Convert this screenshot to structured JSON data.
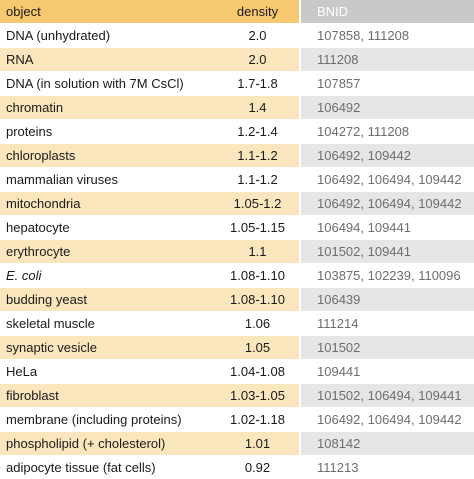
{
  "header": {
    "object": "object",
    "density": "density",
    "bnid": "BNID"
  },
  "rows": [
    {
      "object": "DNA (unhydrated)",
      "density": "2.0",
      "bnid": "107858, 111208",
      "italic": false
    },
    {
      "object": "RNA",
      "density": "2.0",
      "bnid": "111208",
      "italic": false
    },
    {
      "object": "DNA (in solution with 7M CsCl)",
      "density": "1.7-1.8",
      "bnid": "107857",
      "italic": false
    },
    {
      "object": "chromatin",
      "density": "1.4",
      "bnid": "106492",
      "italic": false
    },
    {
      "object": "proteins",
      "density": "1.2-1.4",
      "bnid": "104272, 111208",
      "italic": false
    },
    {
      "object": "chloroplasts",
      "density": "1.1-1.2",
      "bnid": "106492, 109442",
      "italic": false
    },
    {
      "object": "mammalian viruses",
      "density": "1.1-1.2",
      "bnid": "106492, 106494, 109442",
      "italic": false
    },
    {
      "object": "mitochondria",
      "density": "1.05-1.2",
      "bnid": "106492, 106494, 109442",
      "italic": false
    },
    {
      "object": "hepatocyte",
      "density": "1.05-1.15",
      "bnid": "106494, 109441",
      "italic": false
    },
    {
      "object": "erythrocyte",
      "density": "1.1",
      "bnid": "101502, 109441",
      "italic": false
    },
    {
      "object": "E. coli",
      "density": "1.08-1.10",
      "bnid": "103875, 102239, 110096",
      "italic": true
    },
    {
      "object": "budding yeast",
      "density": "1.08-1.10",
      "bnid": "106439",
      "italic": false
    },
    {
      "object": "skeletal muscle",
      "density": "1.06",
      "bnid": "111214",
      "italic": false
    },
    {
      "object": "synaptic vesicle",
      "density": "1.05",
      "bnid": "101502",
      "italic": false
    },
    {
      "object": "HeLa",
      "density": "1.04-1.08",
      "bnid": "109441",
      "italic": false
    },
    {
      "object": "fibroblast",
      "density": "1.03-1.05",
      "bnid": "101502, 106494, 109441",
      "italic": false
    },
    {
      "object": "membrane (including proteins)",
      "density": "1.02-1.18",
      "bnid": "106492, 106494, 109442",
      "italic": false
    },
    {
      "object": "phospholipid (+ cholesterol)",
      "density": "1.01",
      "bnid": "108142",
      "italic": false
    },
    {
      "object": "adipocyte tissue (fat cells)",
      "density": "0.92",
      "bnid": "111213",
      "italic": false
    }
  ]
}
